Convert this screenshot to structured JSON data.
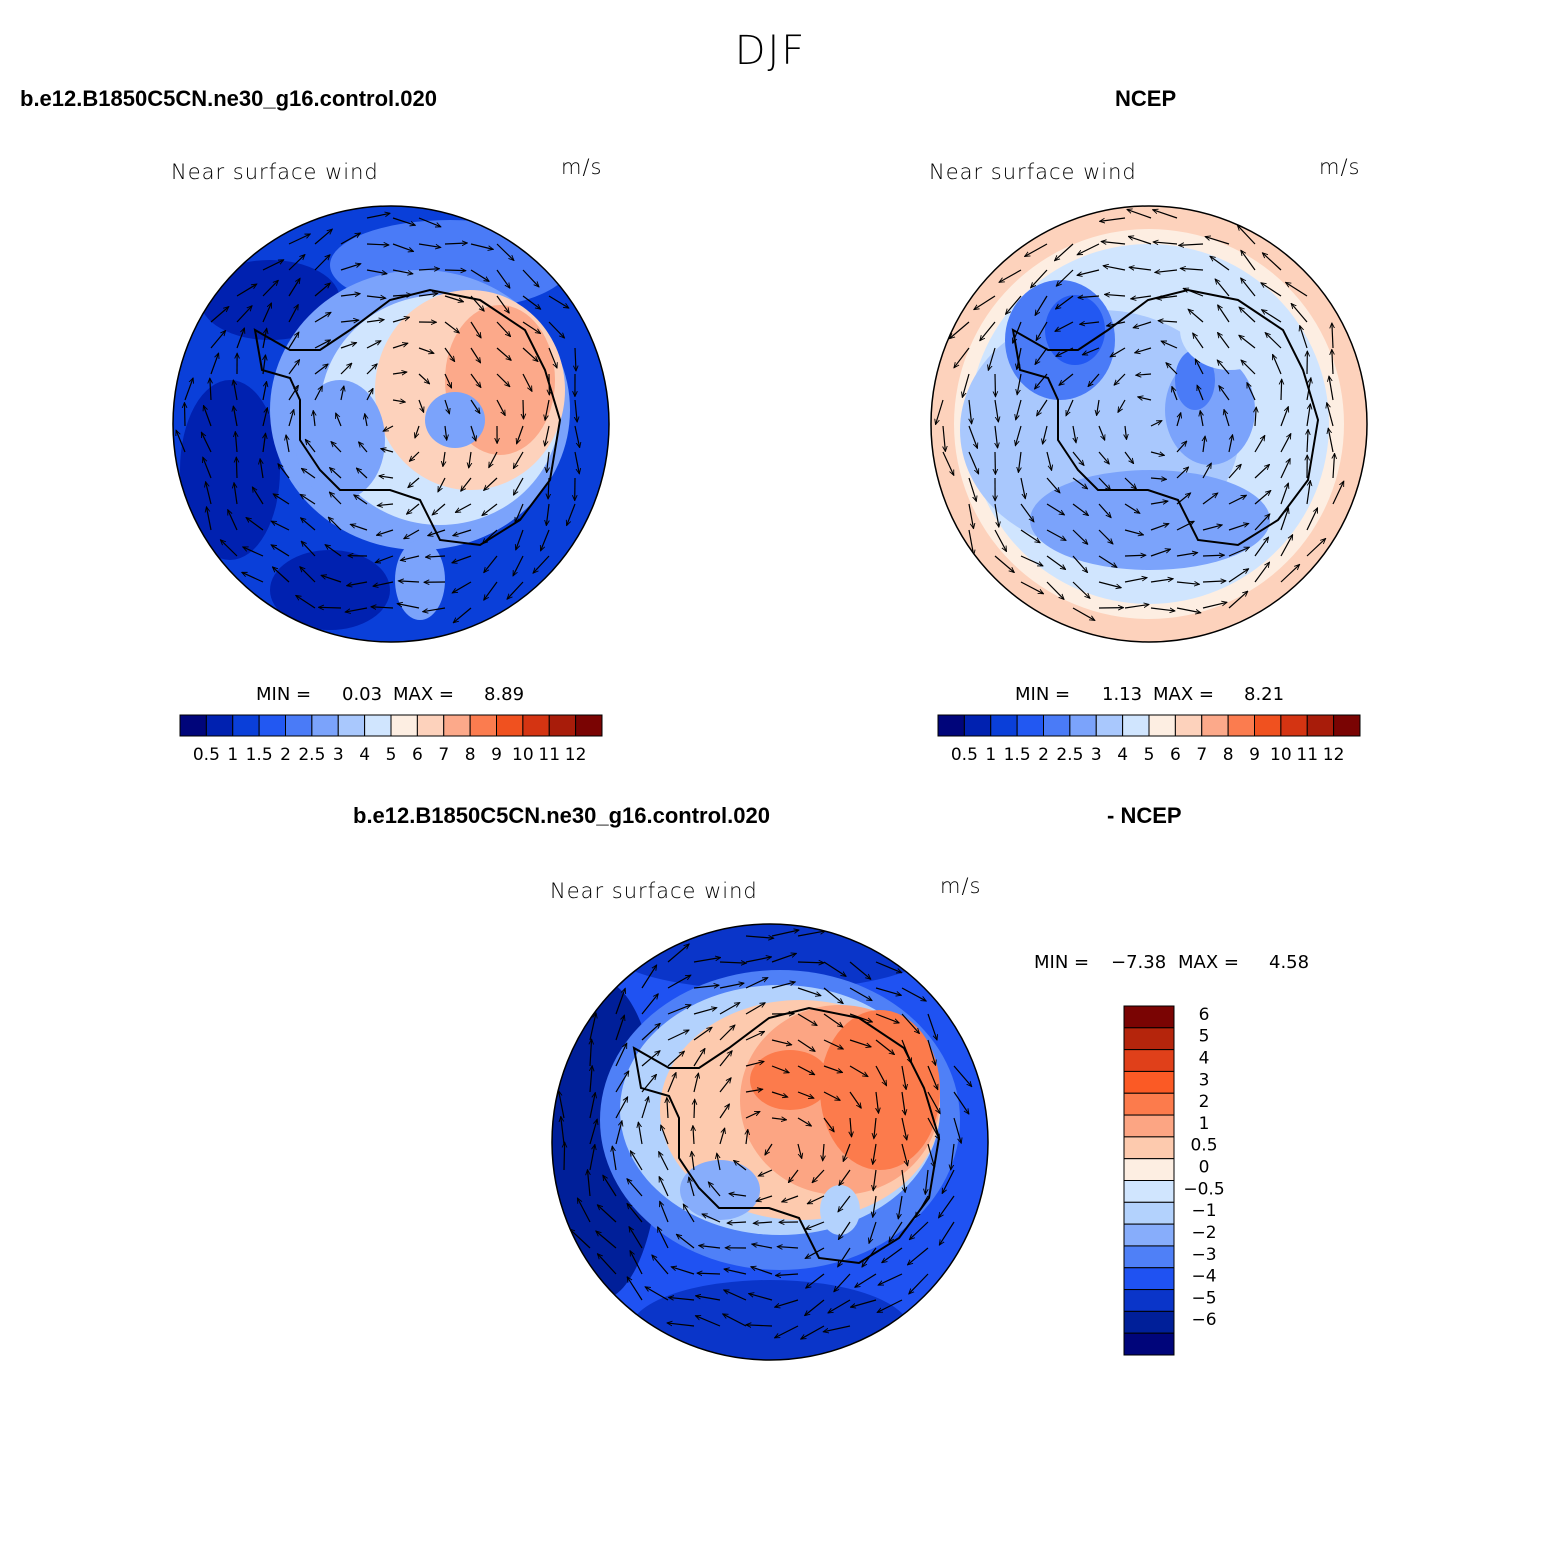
{
  "suptitle": "DJF",
  "panels": {
    "left_case": "b.e12.B1850C5CN.ne30_g16.control.020",
    "right_case": "NCEP",
    "diff_case_a": "b.e12.B1850C5CN.ne30_g16.control.020",
    "diff_case_b": "- NCEP"
  },
  "chart_data": [
    {
      "type": "heatmap",
      "title": "Near surface wind",
      "units": "m/s",
      "projection": "south-polar-stereographic",
      "min_label": "MIN =",
      "min_value": "0.03",
      "max_label": "MAX =",
      "max_value": "8.89",
      "colorbar_ticks": [
        "0.5",
        "1",
        "1.5",
        "2",
        "2.5",
        "3",
        "4",
        "5",
        "6",
        "7",
        "8",
        "9",
        "10",
        "11",
        "12"
      ],
      "colorbar_colors": [
        "#00057a",
        "#0021b0",
        "#0a3fd9",
        "#2258f2",
        "#4a7bf7",
        "#7ba3fb",
        "#a9c8fd",
        "#d0e5fe",
        "#fdeee2",
        "#fdd2bc",
        "#fca98a",
        "#fb7c4f",
        "#f0511f",
        "#d43412",
        "#a81c0a",
        "#7a0403"
      ]
    },
    {
      "type": "heatmap",
      "title": "Near surface wind",
      "units": "m/s",
      "projection": "south-polar-stereographic",
      "min_label": "MIN =",
      "min_value": "1.13",
      "max_label": "MAX =",
      "max_value": "8.21",
      "colorbar_ticks": [
        "0.5",
        "1",
        "1.5",
        "2",
        "2.5",
        "3",
        "4",
        "5",
        "6",
        "7",
        "8",
        "9",
        "10",
        "11",
        "12"
      ],
      "colorbar_colors": [
        "#00057a",
        "#0021b0",
        "#0a3fd9",
        "#2258f2",
        "#4a7bf7",
        "#7ba3fb",
        "#a9c8fd",
        "#d0e5fe",
        "#fdeee2",
        "#fdd2bc",
        "#fca98a",
        "#fb7c4f",
        "#f0511f",
        "#d43412",
        "#a81c0a",
        "#7a0403"
      ]
    },
    {
      "type": "heatmap",
      "title": "Near surface wind",
      "units": "m/s",
      "projection": "south-polar-stereographic",
      "min_label": "MIN =",
      "min_value": "−7.38",
      "max_label": "MAX =",
      "max_value": "4.58",
      "colorbar_ticks": [
        "6",
        "5",
        "4",
        "3",
        "2",
        "1",
        "0.5",
        "0",
        "−0.5",
        "−1",
        "−2",
        "−3",
        "−4",
        "−5",
        "−6"
      ],
      "colorbar_colors": [
        "#7a0403",
        "#b5250c",
        "#e0401a",
        "#fb5a25",
        "#fc7b4c",
        "#fca583",
        "#fdcaae",
        "#fdeee2",
        "#d0e5fe",
        "#b3d2fd",
        "#87adfb",
        "#4f80f7",
        "#1f52f2",
        "#0a35c9",
        "#001f99",
        "#00057a"
      ]
    }
  ]
}
